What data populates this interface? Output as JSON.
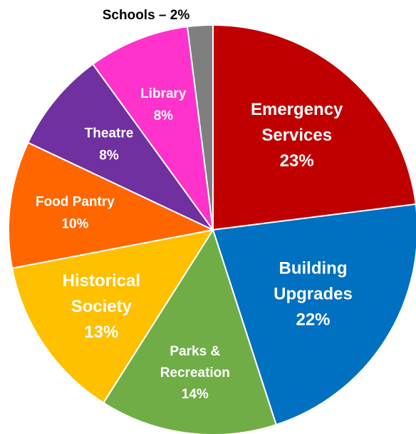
{
  "chart_data": {
    "type": "pie",
    "title": "",
    "start": "12 o'clock",
    "direction": "clockwise",
    "slices": [
      {
        "name": "Emergency Services",
        "label_lines": [
          "Emergency",
          "Services"
        ],
        "value": 23,
        "value_label": "23%",
        "color": "#C00000"
      },
      {
        "name": "Building Upgrades",
        "label_lines": [
          "Building",
          "Upgrades"
        ],
        "value": 22,
        "value_label": "22%",
        "color": "#0070C0"
      },
      {
        "name": "Parks & Recreation",
        "label_lines": [
          "Parks &",
          "Recreation"
        ],
        "value": 14,
        "value_label": "14%",
        "color": "#70AD47"
      },
      {
        "name": "Historical Society",
        "label_lines": [
          "Historical",
          "Society"
        ],
        "value": 13,
        "value_label": "13%",
        "color": "#FFC000"
      },
      {
        "name": "Food Pantry",
        "label_lines": [
          "Food Pantry"
        ],
        "value": 10,
        "value_label": "10%",
        "color": "#FF6600"
      },
      {
        "name": "Theatre",
        "label_lines": [
          "Theatre"
        ],
        "value": 8,
        "value_label": "8%",
        "color": "#7030A0"
      },
      {
        "name": "Library",
        "label_lines": [
          "Library"
        ],
        "value": 8,
        "value_label": "8%",
        "color": "#FF33CC"
      },
      {
        "name": "Schools",
        "label_lines": [
          "Schools – 2%"
        ],
        "value": 2,
        "value_label": "",
        "color": "#7F7F7F",
        "label_outside": true
      }
    ]
  }
}
